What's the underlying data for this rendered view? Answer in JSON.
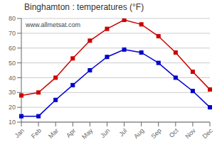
{
  "chart_data": {
    "type": "line",
    "title": "Binghamton : temperatures (°F)",
    "categories": [
      "Jan",
      "Feb",
      "Mar",
      "Apr",
      "May",
      "Jun",
      "Jul",
      "Aug",
      "Sep",
      "Oct",
      "Nov",
      "Dec"
    ],
    "series": [
      {
        "color": "#cc0000",
        "values": [
          28,
          30,
          40,
          53,
          65,
          73,
          79,
          76,
          68,
          57,
          44,
          32
        ]
      },
      {
        "color": "#0000cc",
        "values": [
          14,
          14,
          25,
          35,
          45,
          54,
          59,
          57,
          50,
          40,
          31,
          20
        ]
      }
    ],
    "ylim": [
      10,
      80
    ],
    "yticks": [
      10,
      20,
      30,
      40,
      50,
      60,
      70,
      80
    ],
    "grid": "y",
    "marker": "square",
    "annotations": [
      "www.allmetsat.com"
    ]
  }
}
